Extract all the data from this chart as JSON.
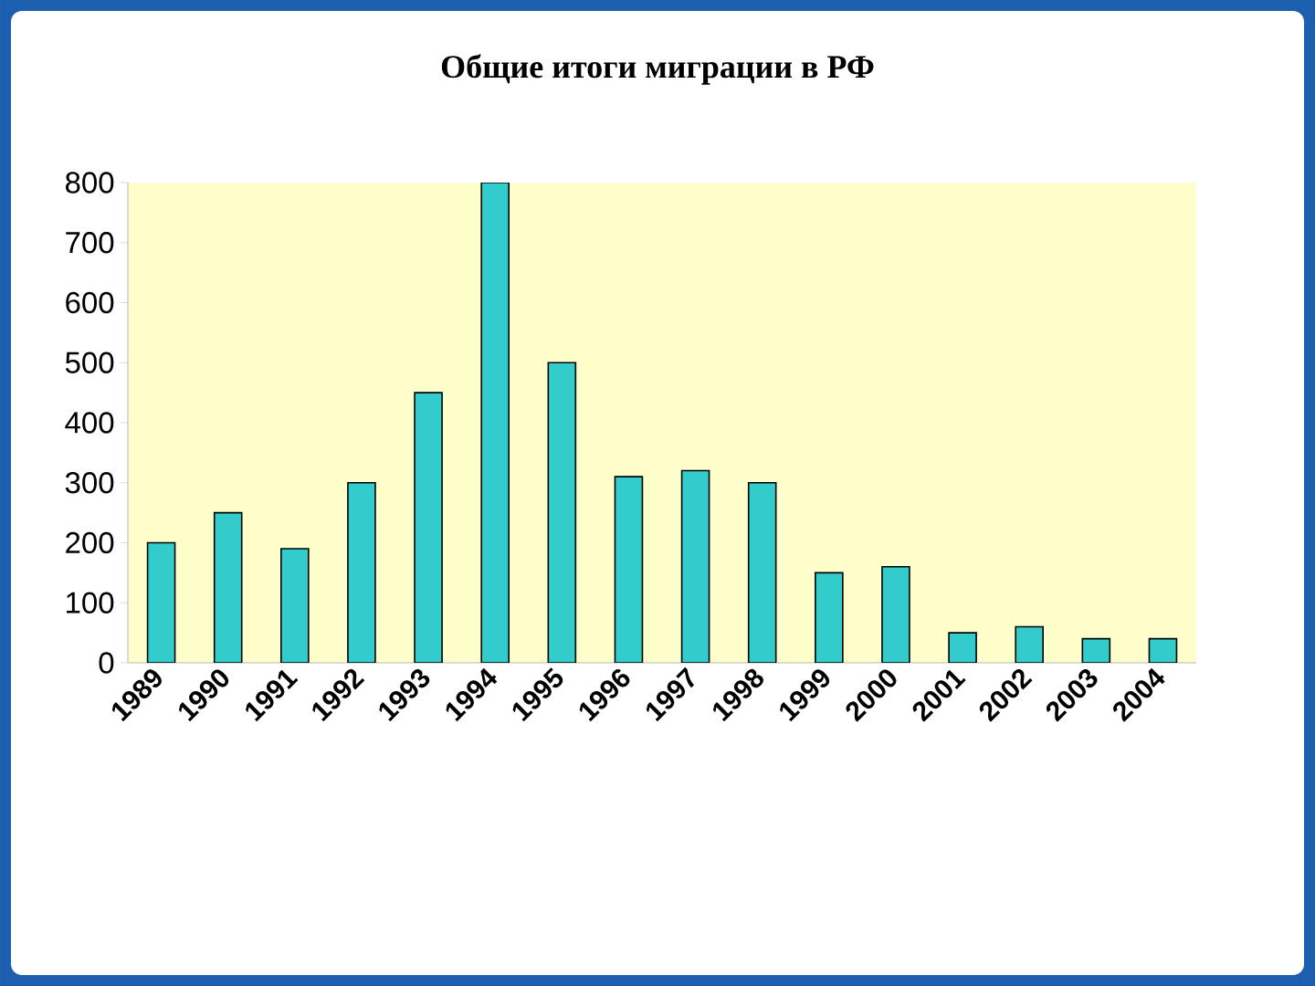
{
  "chart_data": {
    "type": "bar",
    "title": "Общие итоги миграции в РФ",
    "categories": [
      "1989",
      "1990",
      "1991",
      "1992",
      "1993",
      "1994",
      "1995",
      "1996",
      "1997",
      "1998",
      "1999",
      "2000",
      "2001",
      "2002",
      "2003",
      "2004"
    ],
    "values": [
      200,
      250,
      190,
      300,
      450,
      800,
      500,
      310,
      320,
      300,
      150,
      160,
      50,
      60,
      40,
      40
    ],
    "color": "#33cccc",
    "ylim": [
      0,
      800
    ],
    "yticks": [
      0,
      100,
      200,
      300,
      400,
      500,
      600,
      700,
      800
    ]
  }
}
